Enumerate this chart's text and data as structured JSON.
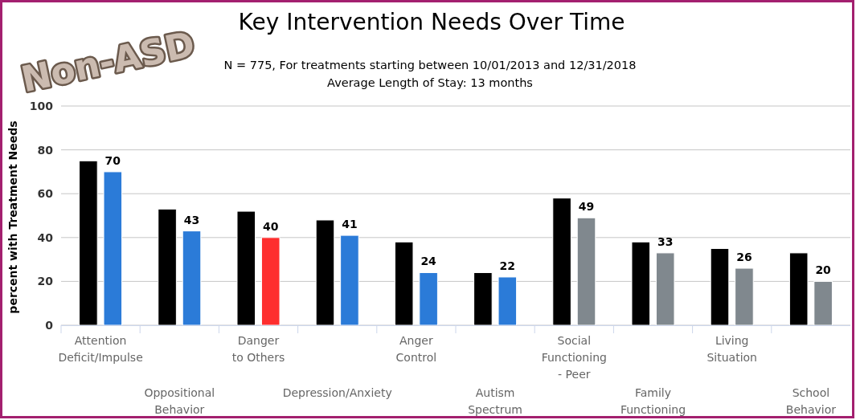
{
  "chart_data": {
    "type": "bar",
    "title": "Key Intervention Needs Over Time",
    "subtitle": "N = 775, For treatments starting between 10/01/2013 and 12/31/2018\nAverage Length of Stay: 13 months",
    "ylabel": "percent with Treatment Needs",
    "annotations": [
      "Non-ASD"
    ],
    "categories": [
      "Attention Deficit/Impulse",
      "Oppositional Behavior",
      "Danger to Others",
      "Depression/Anxiety",
      "Anger Control",
      "Autism Spectrum",
      "Social Functioning - Peer",
      "Family Functioning",
      "Living Situation",
      "School Behavior"
    ],
    "series": [
      {
        "color": "#000000",
        "values": [
          75,
          53,
          52,
          48,
          38,
          24,
          58,
          38,
          35,
          33
        ]
      },
      {
        "colors": [
          "#2b7bd8",
          "#2b7bd8",
          "#fe2e2e",
          "#2b7bd8",
          "#2b7bd8",
          "#2b7bd8",
          "#80888e",
          "#80888e",
          "#80888e",
          "#80888e"
        ],
        "values": [
          70,
          43,
          40,
          41,
          24,
          22,
          49,
          33,
          26,
          20
        ],
        "value_labels": [
          "70",
          "43",
          "40",
          "41",
          "24",
          "22",
          "49",
          "33",
          "26",
          "20"
        ]
      }
    ],
    "ylim": [
      0,
      100
    ],
    "yticks": [
      0,
      20,
      40,
      60,
      80,
      100
    ],
    "grid": "y"
  }
}
